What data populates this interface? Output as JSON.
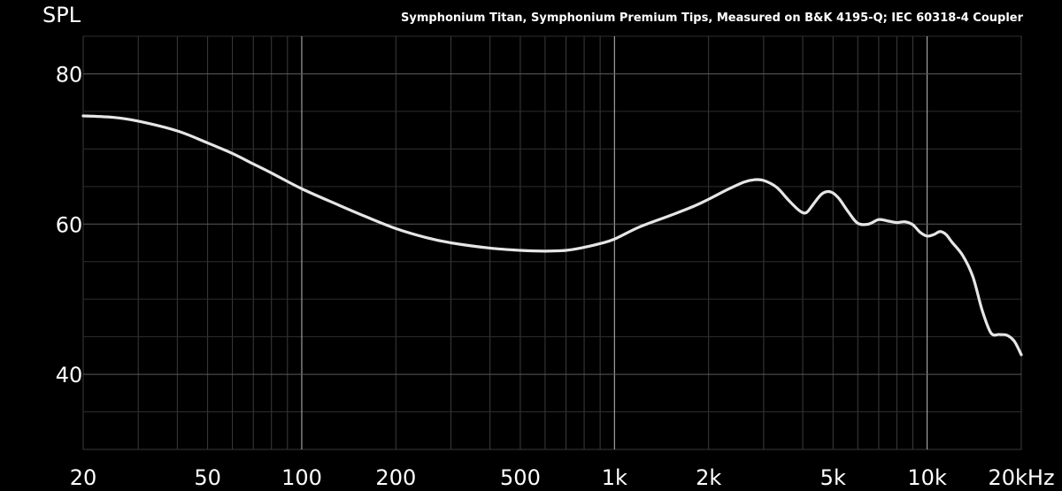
{
  "chart_data": {
    "type": "line",
    "title": "Symphonium Titan, Symphonium Premium Tips, Measured on B&K 4195-Q; IEC 60318-4 Coupler",
    "ylabel": "SPL",
    "xlabel": "",
    "x_scale": "log",
    "xlim": [
      20,
      20000
    ],
    "ylim": [
      30,
      85
    ],
    "x_ticks": [
      {
        "value": 20,
        "label": "20"
      },
      {
        "value": 50,
        "label": "50"
      },
      {
        "value": 100,
        "label": "100"
      },
      {
        "value": 200,
        "label": "200"
      },
      {
        "value": 500,
        "label": "500"
      },
      {
        "value": 1000,
        "label": "1k"
      },
      {
        "value": 2000,
        "label": "2k"
      },
      {
        "value": 5000,
        "label": "5k"
      },
      {
        "value": 10000,
        "label": "10k"
      },
      {
        "value": 20000,
        "label": "20kHz"
      }
    ],
    "y_ticks": [
      {
        "value": 40,
        "label": "40"
      },
      {
        "value": 60,
        "label": "60"
      },
      {
        "value": 80,
        "label": "80"
      }
    ],
    "grid": true,
    "series": [
      {
        "color": "#e6e6e6",
        "x": [
          20,
          25,
          30,
          40,
          50,
          60,
          70,
          80,
          100,
          130,
          160,
          200,
          250,
          300,
          400,
          500,
          600,
          700,
          800,
          900,
          1000,
          1200,
          1500,
          1800,
          2000,
          2300,
          2600,
          2800,
          3000,
          3300,
          3600,
          3900,
          4100,
          4300,
          4600,
          4900,
          5200,
          5600,
          6000,
          6500,
          7000,
          7500,
          8000,
          8500,
          9000,
          9500,
          10000,
          10500,
          11000,
          11500,
          12000,
          13000,
          14000,
          15000,
          16000,
          17000,
          18000,
          19000,
          20000
        ],
        "y": [
          74.4,
          74.2,
          73.7,
          72.4,
          70.8,
          69.4,
          68.0,
          66.8,
          64.7,
          62.6,
          61.0,
          59.4,
          58.2,
          57.5,
          56.8,
          56.5,
          56.4,
          56.5,
          56.9,
          57.4,
          58.0,
          59.6,
          61.1,
          62.4,
          63.3,
          64.6,
          65.6,
          65.9,
          65.8,
          64.9,
          63.2,
          61.8,
          61.5,
          62.5,
          64.0,
          64.3,
          63.5,
          61.6,
          60.1,
          60.0,
          60.6,
          60.4,
          60.2,
          60.3,
          59.9,
          58.9,
          58.4,
          58.6,
          59.0,
          58.6,
          57.6,
          55.8,
          53.0,
          48.5,
          45.5,
          45.3,
          45.2,
          44.4,
          42.6
        ]
      }
    ]
  }
}
